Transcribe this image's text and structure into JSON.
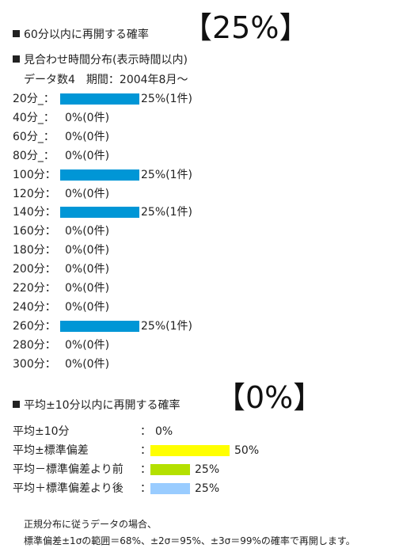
{
  "section1": {
    "title": "60分以内に再開する確率",
    "value": "【25%】"
  },
  "section2": {
    "title": "見合わせ時間分布(表示時間以内)",
    "subtitle": "データ数4　期間：2004年8月～"
  },
  "distribution": [
    {
      "label": "20分_：",
      "text": "25%(1件)",
      "fraction": 0.25
    },
    {
      "label": "40分_：",
      "text": "0%(0件)",
      "fraction": 0
    },
    {
      "label": "60分_：",
      "text": "0%(0件)",
      "fraction": 0
    },
    {
      "label": "80分_：",
      "text": "0%(0件)",
      "fraction": 0
    },
    {
      "label": "100分：",
      "text": "25%(1件)",
      "fraction": 0.25
    },
    {
      "label": "120分：",
      "text": "0%(0件)",
      "fraction": 0
    },
    {
      "label": "140分：",
      "text": "25%(1件)",
      "fraction": 0.25
    },
    {
      "label": "160分：",
      "text": "0%(0件)",
      "fraction": 0
    },
    {
      "label": "180分：",
      "text": "0%(0件)",
      "fraction": 0
    },
    {
      "label": "200分：",
      "text": "0%(0件)",
      "fraction": 0
    },
    {
      "label": "220分：",
      "text": "0%(0件)",
      "fraction": 0
    },
    {
      "label": "240分：",
      "text": "0%(0件)",
      "fraction": 0
    },
    {
      "label": "260分：",
      "text": "25%(1件)",
      "fraction": 0.25
    },
    {
      "label": "280分：",
      "text": "0%(0件)",
      "fraction": 0
    },
    {
      "label": "300分：",
      "text": "0%(0件)",
      "fraction": 0
    }
  ],
  "section3": {
    "title": "平均±10分以内に再開する確率",
    "value": "【0%】"
  },
  "stats": [
    {
      "label": "平均±10分",
      "text": "0%",
      "fraction": 0,
      "color": "#ffffff"
    },
    {
      "label": "平均±標準偏差",
      "text": "50%",
      "fraction": 0.5,
      "color": "#ffff00"
    },
    {
      "label": "平均－標準偏差より前",
      "text": "25%",
      "fraction": 0.25,
      "color": "#b4e000"
    },
    {
      "label": "平均＋標準偏差より後",
      "text": "25%",
      "fraction": 0.25,
      "color": "#99ccff"
    }
  ],
  "colon": "：",
  "bar_color": "#0096d6",
  "note": {
    "line1": "正規分布に従うデータの場合、",
    "line2": "標準偏差±1σの範囲＝68%、±2σ＝95%、±3σ＝99%の確率で再開します。"
  }
}
